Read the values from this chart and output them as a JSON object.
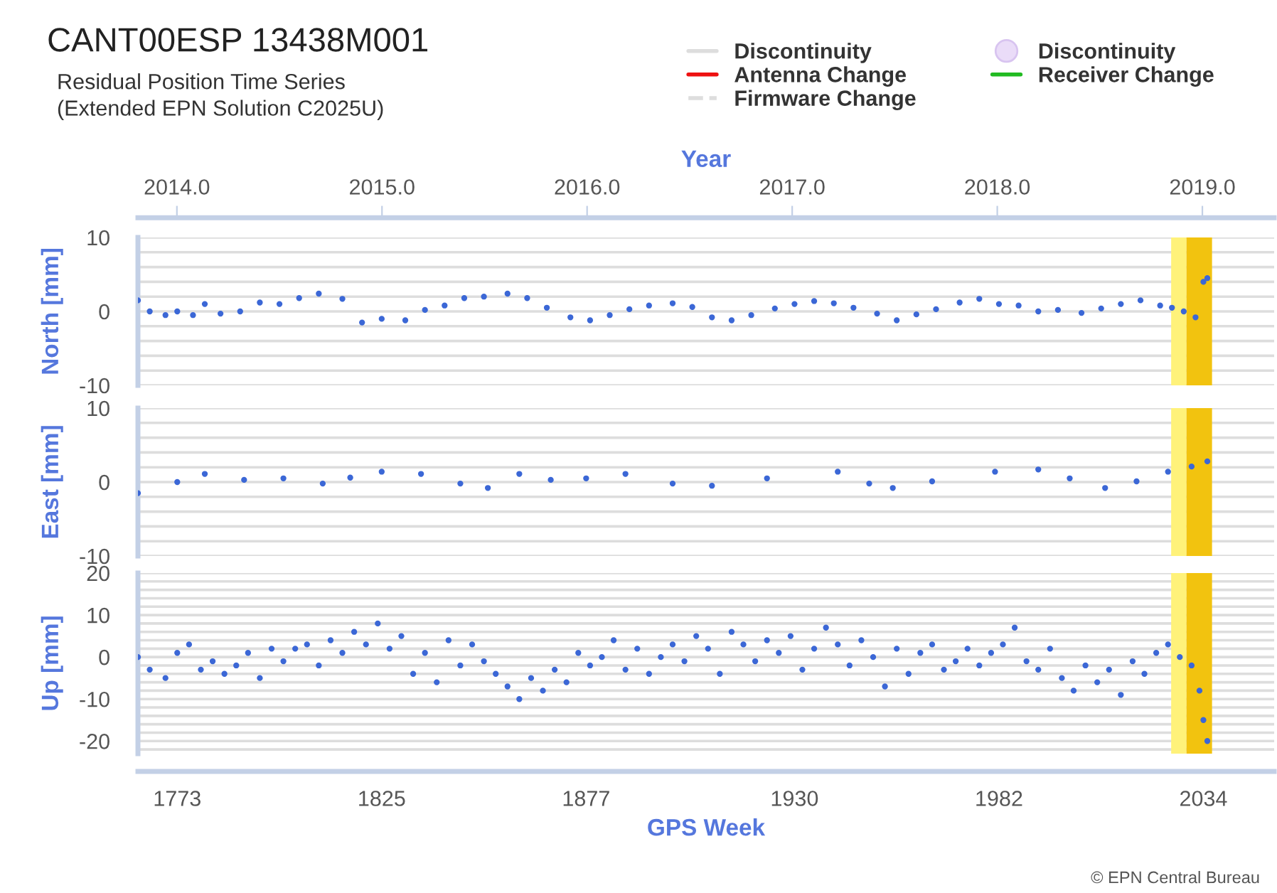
{
  "chart_data": [
    {
      "type": "scatter",
      "title": "CANT00ESP 13438M001",
      "subtitle": "Residual Position Time Series\n(Extended EPN Solution C2025U)",
      "ylabel": "North [mm]",
      "x2label": "Year",
      "x": [
        1763,
        1766,
        1770,
        1773,
        1777,
        1780,
        1784,
        1789,
        1794,
        1799,
        1804,
        1809,
        1815,
        1820,
        1825,
        1831,
        1836,
        1841,
        1846,
        1851,
        1857,
        1862,
        1867,
        1873,
        1878,
        1883,
        1888,
        1893,
        1899,
        1904,
        1909,
        1914,
        1919,
        1925,
        1930,
        1935,
        1940,
        1945,
        1951,
        1956,
        1961,
        1966,
        1972,
        1977,
        1982,
        1987,
        1992,
        1997,
        2003,
        2008,
        2013,
        2018,
        2023,
        2026,
        2029,
        2032,
        2034,
        2035
      ],
      "series": [
        {
          "type": "scatter",
          "color": "#3b67d6",
          "values": [
            1.5,
            0,
            -0.5,
            0,
            -0.5,
            1.0,
            -0.3,
            0.0,
            1.2,
            1.0,
            1.8,
            2.4,
            1.7,
            -1.5,
            -1.0,
            -1.2,
            0.2,
            0.8,
            1.8,
            2.0,
            2.4,
            1.8,
            0.5,
            -0.8,
            -1.2,
            -0.5,
            0.3,
            0.8,
            1.1,
            0.6,
            -0.8,
            -1.2,
            -0.5,
            0.4,
            1.0,
            1.4,
            1.1,
            0.5,
            -0.3,
            -1.2,
            -0.4,
            0.3,
            1.2,
            1.7,
            1.0,
            0.8,
            0.0,
            0.2,
            -0.2,
            0.4,
            1.0,
            1.5,
            0.8,
            0.5,
            0.0,
            -0.8,
            4.0,
            4.5
          ]
        },
        {
          "type": "line",
          "name": "Discontinuity",
          "color": "#dddddd",
          "values": [
            null,
            null,
            null,
            null,
            null,
            null,
            null,
            null,
            null,
            null,
            null,
            null,
            null,
            null,
            null,
            null,
            null,
            null,
            null,
            null,
            null,
            null,
            null,
            null,
            null,
            null,
            null,
            null,
            null,
            null,
            null,
            null,
            null,
            null,
            null,
            null,
            null,
            null,
            null,
            null,
            null,
            null,
            null,
            null,
            null,
            null,
            null,
            null,
            null,
            null,
            null,
            null,
            null,
            null,
            null,
            null,
            null,
            null
          ]
        },
        {
          "type": "line",
          "name": "Antenna Change",
          "color": "#ee1111",
          "values": [
            null,
            null,
            null,
            null,
            null,
            null,
            null,
            null,
            null,
            null,
            null,
            null,
            null,
            null,
            null,
            null,
            null,
            null,
            null,
            null,
            null,
            null,
            null,
            null,
            null,
            null,
            null,
            null,
            null,
            null,
            null,
            null,
            null,
            null,
            null,
            null,
            null,
            null,
            null,
            null,
            null,
            null,
            null,
            null,
            null,
            null,
            null,
            null,
            null,
            null,
            null,
            null,
            null,
            null,
            null,
            null,
            null,
            null
          ]
        },
        {
          "type": "line",
          "name": "Firmware Change",
          "color": "#dddddd",
          "line_style": "dashed",
          "values": [
            null,
            null,
            null,
            null,
            null,
            null,
            null,
            null,
            null,
            null,
            null,
            null,
            null,
            null,
            null,
            null,
            null,
            null,
            null,
            null,
            null,
            null,
            null,
            null,
            null,
            null,
            null,
            null,
            null,
            null,
            null,
            null,
            null,
            null,
            null,
            null,
            null,
            null,
            null,
            null,
            null,
            null,
            null,
            null,
            null,
            null,
            null,
            null,
            null,
            null,
            null,
            null,
            null,
            null,
            null,
            null,
            null,
            null
          ]
        },
        {
          "type": "scatter",
          "name": "Discontinuity",
          "color": "#eadcf8",
          "marker": "circle",
          "values": [
            null,
            null,
            null,
            null,
            null,
            null,
            null,
            null,
            null,
            null,
            null,
            null,
            null,
            null,
            null,
            null,
            null,
            null,
            null,
            null,
            null,
            null,
            null,
            null,
            null,
            null,
            null,
            null,
            null,
            null,
            null,
            null,
            null,
            null,
            null,
            null,
            null,
            null,
            null,
            null,
            null,
            null,
            null,
            null,
            null,
            null,
            null,
            null,
            null,
            null,
            null,
            null,
            null,
            null,
            null,
            null,
            null,
            null
          ]
        },
        {
          "type": "line",
          "name": "Receiver Change",
          "color": "#22bb22",
          "values": [
            null,
            null,
            null,
            null,
            null,
            null,
            null,
            null,
            null,
            null,
            null,
            null,
            null,
            null,
            null,
            null,
            null,
            null,
            null,
            null,
            null,
            null,
            null,
            null,
            null,
            null,
            null,
            null,
            null,
            null,
            null,
            null,
            null,
            null,
            null,
            null,
            null,
            null,
            null,
            null,
            null,
            null,
            null,
            null,
            null,
            null,
            null,
            null,
            null,
            null,
            null,
            null,
            null,
            null,
            null,
            null,
            null,
            null
          ]
        }
      ],
      "legend": "top right",
      "xlim": [
        1763,
        2052
      ],
      "ylim": [
        -10,
        10
      ],
      "yticks": [
        -10,
        {
          "value": -8,
          "label": null
        },
        {
          "value": -6,
          "label": null
        },
        {
          "value": -4,
          "label": null
        },
        {
          "value": -2,
          "label": null
        },
        0,
        {
          "value": 2,
          "label": null
        },
        {
          "value": 4,
          "label": null
        },
        {
          "value": 6,
          "label": null
        },
        {
          "value": 8,
          "label": null
        },
        10
      ],
      "x2lim": [
        2013.81,
        2019.35
      ],
      "x2ticks": [
        {
          "value": 2014,
          "label": "2014.0"
        },
        {
          "value": 2015,
          "label": "2015.0"
        },
        {
          "value": 2016,
          "label": "2016.0"
        },
        {
          "value": 2017,
          "label": "2017.0"
        },
        {
          "value": 2018,
          "label": "2018.0"
        },
        {
          "value": 2019,
          "label": "2019.0"
        }
      ],
      "tick_labels": "y",
      "grid": "y",
      "bands": [
        {
          "axis": "x",
          "from": 2025.8,
          "to": 2029.7,
          "color": "#fff27a"
        },
        {
          "axis": "x",
          "from": 2029.7,
          "to": 2036.2,
          "color": "#f2c30f"
        }
      ]
    },
    {
      "type": "scatter",
      "ylabel": "East [mm]",
      "x": [
        1763,
        1773,
        1780,
        1790,
        1800,
        1810,
        1817,
        1825,
        1835,
        1845,
        1852,
        1860,
        1868,
        1877,
        1887,
        1899,
        1909,
        1923,
        1941,
        1949,
        1955,
        1965,
        1981,
        1992,
        2000,
        2009,
        2017,
        2025,
        2031,
        2035
      ],
      "series": [
        {
          "type": "scatter",
          "color": "#3b67d6",
          "values": [
            -1.5,
            0,
            1.1,
            0.3,
            0.5,
            -0.2,
            0.6,
            1.4,
            1.1,
            -0.2,
            -0.8,
            1.1,
            0.3,
            0.5,
            1.1,
            -0.2,
            -0.5,
            0.5,
            1.4,
            -0.2,
            -0.8,
            0.1,
            1.4,
            1.7,
            0.5,
            -0.8,
            0.1,
            1.4,
            2.1,
            2.8
          ]
        }
      ],
      "xlim": [
        1763,
        2052
      ],
      "ylim": [
        -10,
        10
      ],
      "yticks": [
        -10,
        {
          "value": -8,
          "label": null
        },
        {
          "value": -6,
          "label": null
        },
        {
          "value": -4,
          "label": null
        },
        {
          "value": -2,
          "label": null
        },
        0,
        {
          "value": 2,
          "label": null
        },
        {
          "value": 4,
          "label": null
        },
        {
          "value": 6,
          "label": null
        },
        {
          "value": 8,
          "label": null
        },
        10
      ],
      "tick_labels": "y",
      "grid": "y",
      "bands": [
        {
          "axis": "x",
          "from": 2025.8,
          "to": 2029.7,
          "color": "#fff27a"
        },
        {
          "axis": "x",
          "from": 2029.7,
          "to": 2036.2,
          "color": "#f2c30f"
        }
      ]
    },
    {
      "type": "scatter",
      "ylabel": "Up [mm]",
      "xlabel": "GPS Week",
      "x": [
        1763,
        1766,
        1770,
        1773,
        1776,
        1779,
        1782,
        1785,
        1788,
        1791,
        1794,
        1797,
        1800,
        1803,
        1806,
        1809,
        1812,
        1815,
        1818,
        1821,
        1824,
        1827,
        1830,
        1833,
        1836,
        1839,
        1842,
        1845,
        1848,
        1851,
        1854,
        1857,
        1860,
        1863,
        1866,
        1869,
        1872,
        1875,
        1878,
        1881,
        1884,
        1887,
        1890,
        1893,
        1896,
        1899,
        1902,
        1905,
        1908,
        1911,
        1914,
        1917,
        1920,
        1923,
        1926,
        1929,
        1932,
        1935,
        1938,
        1941,
        1944,
        1947,
        1950,
        1953,
        1956,
        1959,
        1962,
        1965,
        1968,
        1971,
        1974,
        1977,
        1980,
        1983,
        1986,
        1989,
        1992,
        1995,
        1998,
        2001,
        2004,
        2007,
        2010,
        2013,
        2016,
        2019,
        2022,
        2025,
        2028,
        2031,
        2033,
        2034,
        2035
      ],
      "series": [
        {
          "type": "scatter",
          "color": "#3b67d6",
          "values": [
            0,
            -3,
            -5,
            1,
            3,
            -3,
            -1,
            -4,
            -2,
            1,
            -5,
            2,
            -1,
            2,
            3,
            -2,
            4,
            1,
            6,
            3,
            8,
            2,
            5,
            -4,
            1,
            -6,
            4,
            -2,
            3,
            -1,
            -4,
            -7,
            -10,
            -5,
            -8,
            -3,
            -6,
            1,
            -2,
            0,
            4,
            -3,
            2,
            -4,
            0,
            3,
            -1,
            5,
            2,
            -4,
            6,
            3,
            -1,
            4,
            1,
            5,
            -3,
            2,
            7,
            3,
            -2,
            4,
            0,
            -7,
            2,
            -4,
            1,
            3,
            -3,
            -1,
            2,
            -2,
            1,
            3,
            7,
            -1,
            -3,
            2,
            -5,
            -8,
            -2,
            -6,
            -3,
            -9,
            -1,
            -4,
            1,
            3,
            0,
            -2,
            -8,
            -15,
            -20
          ]
        }
      ],
      "xlim": [
        1763,
        2052
      ],
      "ylim": [
        -23,
        20
      ],
      "xticks": [
        1773,
        1825,
        1877,
        1930,
        1982,
        2034
      ],
      "yticks": [
        {
          "value": -22,
          "label": null
        },
        -20,
        {
          "value": -18,
          "label": null
        },
        {
          "value": -16,
          "label": null
        },
        {
          "value": -14,
          "label": null
        },
        {
          "value": -12,
          "label": null
        },
        -10,
        {
          "value": -8,
          "label": null
        },
        {
          "value": -6,
          "label": null
        },
        {
          "value": -4,
          "label": null
        },
        {
          "value": -2,
          "label": null
        },
        0,
        {
          "value": 2,
          "label": null
        },
        {
          "value": 4,
          "label": null
        },
        {
          "value": 6,
          "label": null
        },
        {
          "value": 8,
          "label": null
        },
        10,
        {
          "value": 12,
          "label": null
        },
        {
          "value": 14,
          "label": null
        },
        {
          "value": 16,
          "label": null
        },
        {
          "value": 18,
          "label": null
        },
        20
      ],
      "grid": "y",
      "annotations": [
        "© EPN Central Bureau"
      ],
      "bands": [
        {
          "axis": "x",
          "from": 2025.8,
          "to": 2029.7,
          "color": "#fff27a"
        },
        {
          "axis": "x",
          "from": 2029.7,
          "to": 2036.2,
          "color": "#f2c30f"
        }
      ]
    }
  ]
}
